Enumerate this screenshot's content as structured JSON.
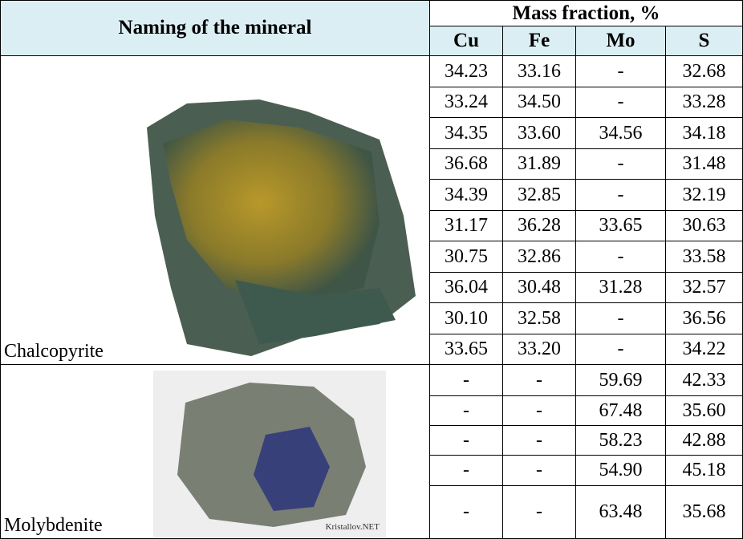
{
  "header": {
    "title": "Naming of the mineral",
    "group": "Mass fraction, %",
    "columns": [
      "Cu",
      "Fe",
      "Mo",
      "S"
    ]
  },
  "minerals": [
    {
      "name": "Chalcopyrite",
      "rows": [
        [
          "34.23",
          "33.16",
          "-",
          "32.68"
        ],
        [
          "33.24",
          "34.50",
          "-",
          "33.28"
        ],
        [
          "34.35",
          "33.60",
          "34.56",
          "34.18"
        ],
        [
          "36.68",
          "31.89",
          "-",
          "31.48"
        ],
        [
          "34.39",
          "32.85",
          "-",
          "32.19"
        ],
        [
          "31.17",
          "36.28",
          "33.65",
          "30.63"
        ],
        [
          "30.75",
          "32.86",
          "-",
          "33.58"
        ],
        [
          "36.04",
          "30.48",
          "31.28",
          "32.57"
        ],
        [
          "30.10",
          "32.58",
          "-",
          "36.56"
        ],
        [
          "33.65",
          "33.20",
          "-",
          "34.22"
        ]
      ]
    },
    {
      "name": "Molybdenite",
      "watermark": "Kristallov.NET",
      "rows": [
        [
          "-",
          "-",
          "59.69",
          "42.33"
        ],
        [
          "-",
          "-",
          "67.48",
          "35.60"
        ],
        [
          "-",
          "-",
          "58.23",
          "42.88"
        ],
        [
          "-",
          "-",
          "54.90",
          "45.18"
        ],
        [
          "-",
          "-",
          "63.48",
          "35.68"
        ]
      ]
    }
  ]
}
